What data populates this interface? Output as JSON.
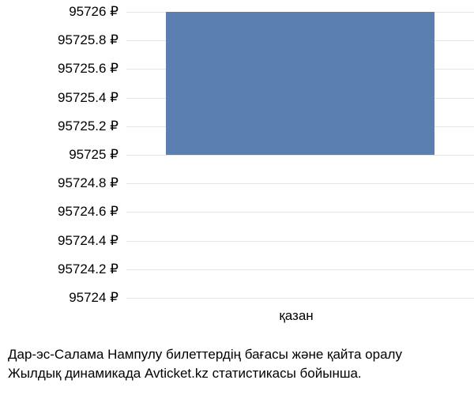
{
  "chart": {
    "type": "bar",
    "currency_symbol": "₽",
    "y_ticks": [
      {
        "value": 95726,
        "label": "95726 ₽",
        "pos": 0
      },
      {
        "value": 95725.8,
        "label": "95725.8 ₽",
        "pos": 10
      },
      {
        "value": 95725.6,
        "label": "95725.6 ₽",
        "pos": 20
      },
      {
        "value": 95725.4,
        "label": "95725.4 ₽",
        "pos": 30
      },
      {
        "value": 95725.2,
        "label": "95725.2 ₽",
        "pos": 40
      },
      {
        "value": 95725,
        "label": "95725 ₽",
        "pos": 50
      },
      {
        "value": 95724.8,
        "label": "95724.8 ₽",
        "pos": 60
      },
      {
        "value": 95724.6,
        "label": "95724.6 ₽",
        "pos": 70
      },
      {
        "value": 95724.4,
        "label": "95724.4 ₽",
        "pos": 80
      },
      {
        "value": 95724.2,
        "label": "95724.2 ₽",
        "pos": 90
      },
      {
        "value": 95724,
        "label": "95724 ₽",
        "pos": 100
      }
    ],
    "x_categories": [
      {
        "label": "қазан"
      }
    ],
    "bars": [
      {
        "category": "қазан",
        "value_low": 95725,
        "value_high": 95726
      }
    ],
    "bar_color": "#5a7fb0",
    "background_color": "#ffffff",
    "grid_color": "#e6e6e6",
    "text_color": "#000000",
    "label_fontsize": 17,
    "ymin": 95724,
    "ymax": 95726
  },
  "caption": {
    "line1": "Дар-эс-Салама Нампулу билеттердің бағасы және қайта оралу",
    "line2": "Жылдық динамикада Avticket.kz статистикасы бойынша."
  }
}
